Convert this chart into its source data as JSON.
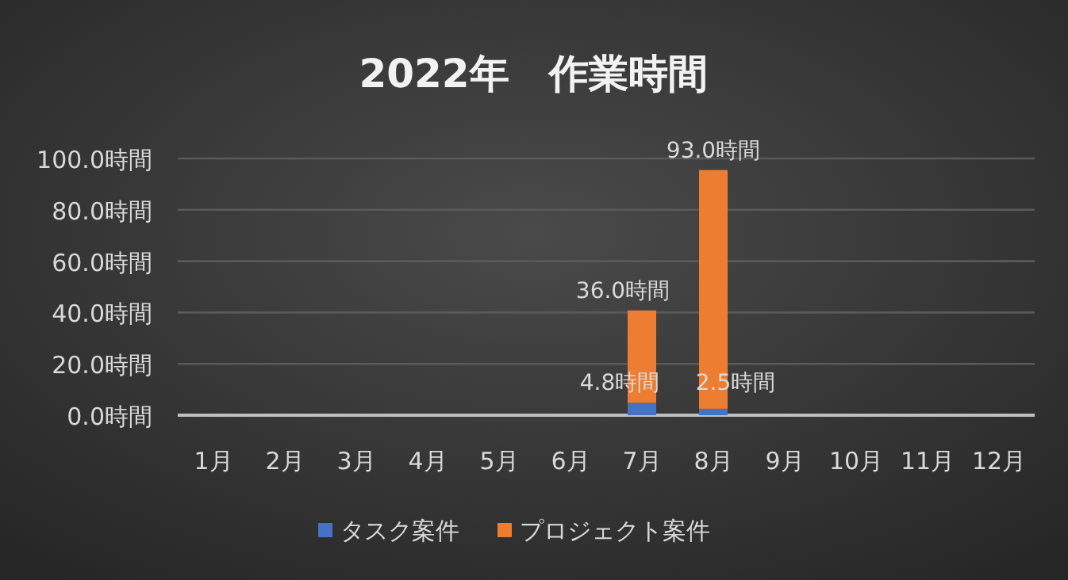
{
  "chart_data": {
    "type": "bar",
    "title": "2022年　作業時間",
    "stacked": true,
    "categories": [
      "1月",
      "2月",
      "3月",
      "4月",
      "5月",
      "6月",
      "7月",
      "8月",
      "9月",
      "10月",
      "11月",
      "12月"
    ],
    "series": [
      {
        "name": "タスク案件",
        "color": "#4472c4",
        "values": [
          null,
          null,
          null,
          null,
          null,
          null,
          4.8,
          2.5,
          null,
          null,
          null,
          null
        ],
        "value_labels": [
          null,
          null,
          null,
          null,
          null,
          null,
          "4.8時間",
          "2.5時間",
          null,
          null,
          null,
          null
        ]
      },
      {
        "name": "プロジェクト案件",
        "color": "#ed7d31",
        "values": [
          null,
          null,
          null,
          null,
          null,
          null,
          36.0,
          93.0,
          null,
          null,
          null,
          null
        ],
        "value_labels": [
          null,
          null,
          null,
          null,
          null,
          null,
          "36.0時間",
          "93.0時間",
          null,
          null,
          null,
          null
        ]
      }
    ],
    "ylim": [
      0,
      100
    ],
    "yticks": [
      {
        "value": 0,
        "label": "0.0時間"
      },
      {
        "value": 20,
        "label": "20.0時間"
      },
      {
        "value": 40,
        "label": "40.0時間"
      },
      {
        "value": 60,
        "label": "60.0時間"
      },
      {
        "value": 80,
        "label": "80.0時間"
      },
      {
        "value": 100,
        "label": "100.0時間"
      }
    ],
    "grid": "y",
    "legend": "bottom"
  }
}
